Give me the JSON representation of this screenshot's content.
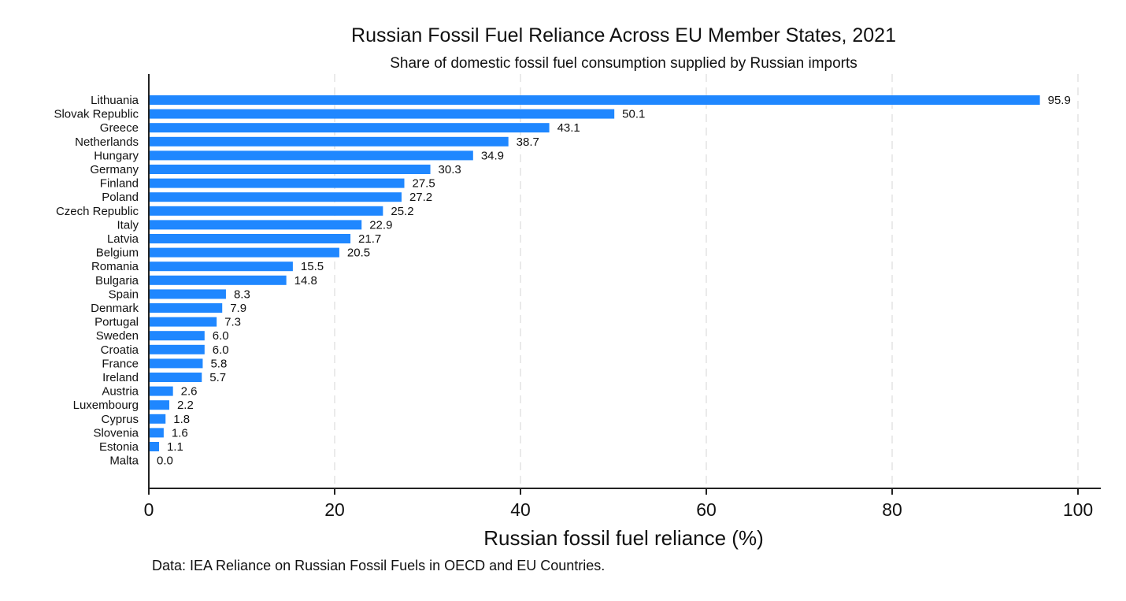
{
  "chart_data": {
    "type": "bar",
    "orientation": "horizontal",
    "title": "Russian Fossil Fuel Reliance Across EU Member States, 2021",
    "subtitle": "Share of domestic fossil fuel consumption supplied by Russian imports",
    "xlabel": "Russian fossil fuel reliance (%)",
    "ylabel": "",
    "note": "Data: IEA Reliance on Russian Fossil Fuels in OECD and EU Countries.",
    "xlim": [
      0,
      100
    ],
    "xticks": [
      0,
      20,
      40,
      60,
      80,
      100
    ],
    "grid": "vertical-dashed",
    "bar_color": "#1f87ff",
    "categories": [
      "Lithuania",
      "Slovak Republic",
      "Greece",
      "Netherlands",
      "Hungary",
      "Germany",
      "Finland",
      "Poland",
      "Czech Republic",
      "Italy",
      "Latvia",
      "Belgium",
      "Romania",
      "Bulgaria",
      "Spain",
      "Denmark",
      "Portugal",
      "Sweden",
      "Croatia",
      "France",
      "Ireland",
      "Austria",
      "Luxembourg",
      "Cyprus",
      "Slovenia",
      "Estonia",
      "Malta"
    ],
    "values": [
      95.9,
      50.1,
      43.1,
      38.7,
      34.9,
      30.3,
      27.5,
      27.2,
      25.2,
      22.9,
      21.7,
      20.5,
      15.5,
      14.8,
      8.3,
      7.9,
      7.3,
      6.0,
      6.0,
      5.8,
      5.7,
      2.6,
      2.2,
      1.8,
      1.6,
      1.1,
      0.0
    ],
    "value_labels": [
      "95.9",
      "50.1",
      "43.1",
      "38.7",
      "34.9",
      "30.3",
      "27.5",
      "27.2",
      "25.2",
      "22.9",
      "21.7",
      "20.5",
      "15.5",
      "14.8",
      "8.3",
      "7.9",
      "7.3",
      "6.0",
      "6.0",
      "5.8",
      "5.7",
      "2.6",
      "2.2",
      "1.8",
      "1.6",
      "1.1",
      "0.0"
    ]
  }
}
